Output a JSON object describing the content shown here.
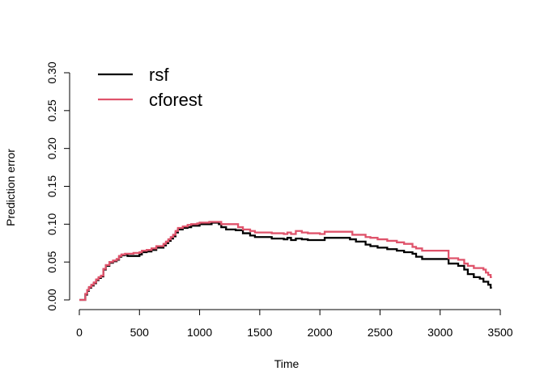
{
  "chart_data": {
    "type": "line",
    "title": "",
    "xlabel": "Time",
    "ylabel": "Prediction error",
    "xlim": [
      0,
      3500
    ],
    "ylim": [
      0,
      0.3
    ],
    "x_ticks": [
      0,
      500,
      1000,
      1500,
      2000,
      2500,
      3000,
      3500
    ],
    "y_ticks": [
      0.0,
      0.05,
      0.1,
      0.15,
      0.2,
      0.25,
      0.3
    ],
    "x_tick_labels": [
      "0",
      "500",
      "1000",
      "1500",
      "2000",
      "2500",
      "3000",
      "3500"
    ],
    "y_tick_labels": [
      "0.00",
      "0.05",
      "0.10",
      "0.15",
      "0.20",
      "0.25",
      "0.30"
    ],
    "grid": false,
    "legend_position": "top-left",
    "step": true,
    "series": [
      {
        "name": "rsf",
        "color": "#000000",
        "points": [
          [
            0,
            0.0
          ],
          [
            40,
            0.0
          ],
          [
            50,
            0.007
          ],
          [
            65,
            0.012
          ],
          [
            80,
            0.016
          ],
          [
            100,
            0.019
          ],
          [
            120,
            0.022
          ],
          [
            140,
            0.026
          ],
          [
            160,
            0.029
          ],
          [
            180,
            0.031
          ],
          [
            200,
            0.04
          ],
          [
            220,
            0.045
          ],
          [
            250,
            0.049
          ],
          [
            280,
            0.051
          ],
          [
            310,
            0.053
          ],
          [
            330,
            0.057
          ],
          [
            350,
            0.059
          ],
          [
            380,
            0.06
          ],
          [
            400,
            0.058
          ],
          [
            500,
            0.06
          ],
          [
            520,
            0.063
          ],
          [
            560,
            0.064
          ],
          [
            600,
            0.066
          ],
          [
            640,
            0.069
          ],
          [
            700,
            0.072
          ],
          [
            720,
            0.075
          ],
          [
            740,
            0.078
          ],
          [
            760,
            0.081
          ],
          [
            780,
            0.084
          ],
          [
            800,
            0.089
          ],
          [
            820,
            0.093
          ],
          [
            860,
            0.095
          ],
          [
            900,
            0.096
          ],
          [
            930,
            0.098
          ],
          [
            980,
            0.098
          ],
          [
            1000,
            0.1
          ],
          [
            1080,
            0.1
          ],
          [
            1100,
            0.102
          ],
          [
            1160,
            0.1
          ],
          [
            1180,
            0.096
          ],
          [
            1220,
            0.093
          ],
          [
            1300,
            0.092
          ],
          [
            1360,
            0.088
          ],
          [
            1420,
            0.085
          ],
          [
            1460,
            0.083
          ],
          [
            1560,
            0.083
          ],
          [
            1600,
            0.081
          ],
          [
            1700,
            0.08
          ],
          [
            1730,
            0.082
          ],
          [
            1760,
            0.079
          ],
          [
            1800,
            0.081
          ],
          [
            1850,
            0.08
          ],
          [
            1900,
            0.079
          ],
          [
            2000,
            0.079
          ],
          [
            2040,
            0.082
          ],
          [
            2100,
            0.082
          ],
          [
            2250,
            0.08
          ],
          [
            2300,
            0.077
          ],
          [
            2380,
            0.073
          ],
          [
            2420,
            0.071
          ],
          [
            2480,
            0.069
          ],
          [
            2560,
            0.067
          ],
          [
            2640,
            0.065
          ],
          [
            2700,
            0.063
          ],
          [
            2770,
            0.061
          ],
          [
            2800,
            0.057
          ],
          [
            2850,
            0.054
          ],
          [
            3000,
            0.054
          ],
          [
            3070,
            0.048
          ],
          [
            3150,
            0.045
          ],
          [
            3200,
            0.04
          ],
          [
            3230,
            0.034
          ],
          [
            3280,
            0.03
          ],
          [
            3330,
            0.028
          ],
          [
            3360,
            0.024
          ],
          [
            3400,
            0.02
          ],
          [
            3420,
            0.016
          ],
          [
            3430,
            0.016
          ]
        ]
      },
      {
        "name": "cforest",
        "color": "#DF536B",
        "points": [
          [
            0,
            0.0
          ],
          [
            40,
            0.0
          ],
          [
            50,
            0.008
          ],
          [
            65,
            0.013
          ],
          [
            80,
            0.017
          ],
          [
            100,
            0.02
          ],
          [
            120,
            0.023
          ],
          [
            140,
            0.027
          ],
          [
            160,
            0.03
          ],
          [
            180,
            0.032
          ],
          [
            200,
            0.041
          ],
          [
            220,
            0.046
          ],
          [
            250,
            0.05
          ],
          [
            280,
            0.052
          ],
          [
            310,
            0.054
          ],
          [
            330,
            0.058
          ],
          [
            350,
            0.06
          ],
          [
            380,
            0.061
          ],
          [
            450,
            0.062
          ],
          [
            500,
            0.063
          ],
          [
            520,
            0.065
          ],
          [
            560,
            0.066
          ],
          [
            600,
            0.068
          ],
          [
            640,
            0.071
          ],
          [
            700,
            0.074
          ],
          [
            720,
            0.077
          ],
          [
            740,
            0.08
          ],
          [
            760,
            0.083
          ],
          [
            780,
            0.086
          ],
          [
            800,
            0.091
          ],
          [
            820,
            0.095
          ],
          [
            860,
            0.097
          ],
          [
            900,
            0.099
          ],
          [
            930,
            0.1
          ],
          [
            980,
            0.101
          ],
          [
            1000,
            0.102
          ],
          [
            1080,
            0.103
          ],
          [
            1160,
            0.103
          ],
          [
            1180,
            0.1
          ],
          [
            1300,
            0.1
          ],
          [
            1320,
            0.096
          ],
          [
            1360,
            0.093
          ],
          [
            1420,
            0.091
          ],
          [
            1460,
            0.089
          ],
          [
            1600,
            0.088
          ],
          [
            1700,
            0.087
          ],
          [
            1730,
            0.089
          ],
          [
            1760,
            0.087
          ],
          [
            1800,
            0.091
          ],
          [
            1850,
            0.089
          ],
          [
            1900,
            0.088
          ],
          [
            2000,
            0.087
          ],
          [
            2040,
            0.09
          ],
          [
            2250,
            0.09
          ],
          [
            2270,
            0.086
          ],
          [
            2380,
            0.083
          ],
          [
            2420,
            0.082
          ],
          [
            2480,
            0.08
          ],
          [
            2560,
            0.078
          ],
          [
            2640,
            0.076
          ],
          [
            2700,
            0.074
          ],
          [
            2770,
            0.07
          ],
          [
            2800,
            0.068
          ],
          [
            2850,
            0.065
          ],
          [
            3000,
            0.065
          ],
          [
            3070,
            0.055
          ],
          [
            3150,
            0.053
          ],
          [
            3200,
            0.048
          ],
          [
            3230,
            0.045
          ],
          [
            3280,
            0.042
          ],
          [
            3360,
            0.04
          ],
          [
            3380,
            0.036
          ],
          [
            3400,
            0.033
          ],
          [
            3420,
            0.03
          ],
          [
            3430,
            0.03
          ]
        ]
      }
    ]
  }
}
